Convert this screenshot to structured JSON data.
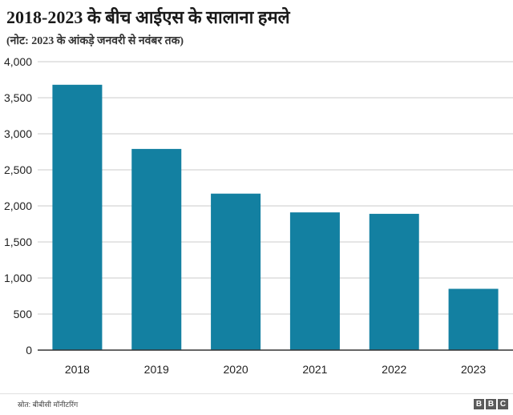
{
  "header": {
    "title": "2018-2023 के बीच आईएस के सालाना हमले",
    "subtitle": "(नोट: 2023 के आंकड़े जनवरी से नवंबर तक)"
  },
  "footer": {
    "source": "स्रोत: बीबीसी मॉनीटरिंग",
    "logo_letters": [
      "B",
      "B",
      "C"
    ]
  },
  "colors": {
    "bar": "#1380a1",
    "grid": "#cbcbcb",
    "axis": "#333333"
  },
  "chart_data": {
    "type": "bar",
    "title": "2018-2023 के बीच आईएस के सालाना हमले",
    "subtitle": "(नोट: 2023 के आंकड़े जनवरी से नवंबर तक)",
    "categories": [
      "2018",
      "2019",
      "2020",
      "2021",
      "2022",
      "2023"
    ],
    "values": [
      3680,
      2790,
      2170,
      1910,
      1890,
      850
    ],
    "ylim": [
      0,
      4000
    ],
    "yticks": [
      0,
      500,
      1000,
      1500,
      2000,
      2500,
      3000,
      3500,
      4000
    ],
    "ytick_labels": [
      "0",
      "500",
      "1,000",
      "1,500",
      "2,000",
      "2,500",
      "3,000",
      "3,500",
      "4,000"
    ],
    "xlabel": "",
    "ylabel": "",
    "grid": true,
    "legend": "none"
  }
}
